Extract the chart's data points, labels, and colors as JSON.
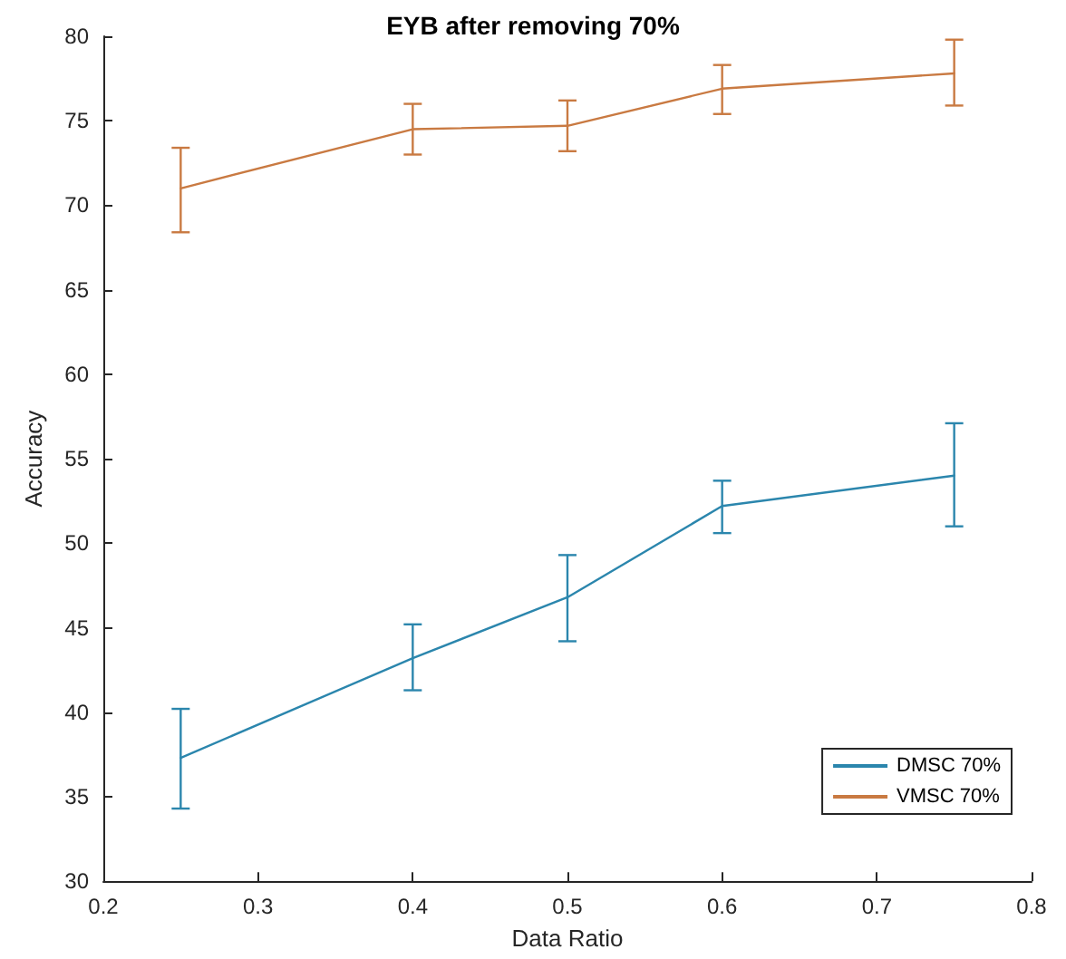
{
  "chart_data": {
    "type": "line",
    "title": "EYB after removing 70%",
    "xlabel": "Data Ratio",
    "ylabel": "Accuracy",
    "x": [
      0.25,
      0.4,
      0.5,
      0.6,
      0.75
    ],
    "xlim": [
      0.2,
      0.8
    ],
    "xticks": [
      0.2,
      0.3,
      0.4,
      0.5,
      0.6,
      0.7,
      0.8
    ],
    "ylim": [
      30,
      80
    ],
    "yticks": [
      30,
      35,
      40,
      45,
      50,
      55,
      60,
      65,
      70,
      75,
      80
    ],
    "grid": false,
    "legend": "bottom right",
    "marker": "none",
    "line_style": "solid",
    "series": [
      {
        "name": "DMSC 70%",
        "color": "#2b86ad",
        "values": [
          37.3,
          43.2,
          46.8,
          52.2,
          54.0
        ],
        "errors": [
          [
            34.3,
            40.2
          ],
          [
            41.3,
            45.2
          ],
          [
            44.2,
            49.3
          ],
          [
            50.6,
            53.7
          ],
          [
            51.0,
            57.1
          ]
        ]
      },
      {
        "name": "VMSC 70%",
        "color": "#c97a42",
        "values": [
          71.0,
          74.5,
          74.7,
          76.9,
          77.8
        ],
        "errors": [
          [
            68.4,
            73.4
          ],
          [
            73.0,
            76.0
          ],
          [
            73.2,
            76.2
          ],
          [
            75.4,
            78.3
          ],
          [
            75.9,
            79.8
          ]
        ]
      }
    ]
  }
}
